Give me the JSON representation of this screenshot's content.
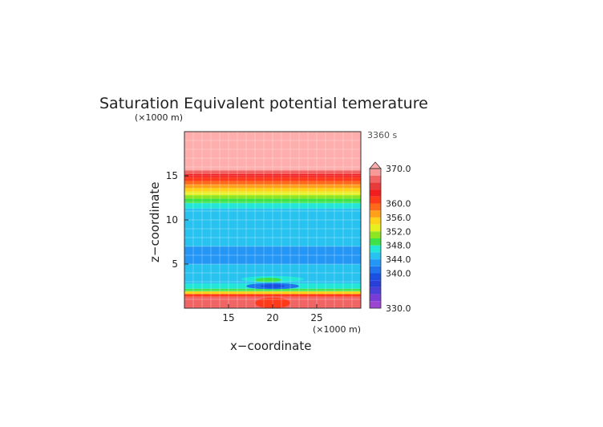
{
  "chart_data": {
    "type": "heatmap",
    "title": "Saturation Equivalent potential temerature",
    "time_label": "3360 s",
    "xlabel": "x−coordinate",
    "ylabel": "z−coordinate",
    "x_unit": "(×1000 m)",
    "z_unit": "(×1000 m)",
    "xlim": [
      10,
      30
    ],
    "ylim": [
      0,
      20
    ],
    "x_ticks": [
      15,
      20,
      25
    ],
    "y_ticks": [
      5,
      10,
      15
    ],
    "grid": true,
    "legend": "right colorbar",
    "colorbar": {
      "min": 330,
      "max": 370,
      "tick_values": [
        370,
        360,
        356,
        352,
        348,
        344,
        340,
        330
      ],
      "tick_labels": [
        "370.0",
        "360.0",
        "356.0",
        "352.0",
        "348.0",
        "344.0",
        "340.0",
        "330.0"
      ],
      "levels": [
        {
          "from": 330,
          "to": 332,
          "color": "#9c45d2"
        },
        {
          "from": 332,
          "to": 334,
          "color": "#7a3cd6"
        },
        {
          "from": 334,
          "to": 336,
          "color": "#4b3fd8"
        },
        {
          "from": 336,
          "to": 338,
          "color": "#2a3fd8"
        },
        {
          "from": 338,
          "to": 340,
          "color": "#1a4fe0"
        },
        {
          "from": 340,
          "to": 342,
          "color": "#1f74ee"
        },
        {
          "from": 342,
          "to": 344,
          "color": "#2496f6"
        },
        {
          "from": 344,
          "to": 346,
          "color": "#27c2f0"
        },
        {
          "from": 346,
          "to": 348,
          "color": "#22e6d6"
        },
        {
          "from": 348,
          "to": 350,
          "color": "#3de24a"
        },
        {
          "from": 350,
          "to": 352,
          "color": "#8ee622"
        },
        {
          "from": 352,
          "to": 354,
          "color": "#e6f020"
        },
        {
          "from": 354,
          "to": 356,
          "color": "#ffd21a"
        },
        {
          "from": 356,
          "to": 358,
          "color": "#ffa01a"
        },
        {
          "from": 358,
          "to": 360,
          "color": "#ff6a1a"
        },
        {
          "from": 360,
          "to": 362,
          "color": "#ff3a1a"
        },
        {
          "from": 362,
          "to": 364,
          "color": "#f21e1e"
        },
        {
          "from": 364,
          "to": 366,
          "color": "#e83a3a"
        },
        {
          "from": 366,
          "to": 368,
          "color": "#f06464"
        },
        {
          "from": 368,
          "to": 370,
          "color": "#f79a9a"
        },
        {
          "from": 370,
          "to": 372,
          "color": "#ffaeae"
        }
      ]
    },
    "layers": [
      {
        "z": [
          15.6,
          20.0
        ],
        "value": 371
      },
      {
        "z": [
          15.2,
          15.6
        ],
        "value": 367
      },
      {
        "z": [
          14.8,
          15.2
        ],
        "value": 363
      },
      {
        "z": [
          14.4,
          14.8
        ],
        "value": 361
      },
      {
        "z": [
          14.0,
          14.4
        ],
        "value": 359
      },
      {
        "z": [
          13.6,
          14.0
        ],
        "value": 357
      },
      {
        "z": [
          13.2,
          13.6
        ],
        "value": 355
      },
      {
        "z": [
          12.8,
          13.2
        ],
        "value": 353
      },
      {
        "z": [
          12.4,
          12.8
        ],
        "value": 351
      },
      {
        "z": [
          11.9,
          12.4
        ],
        "value": 349
      },
      {
        "z": [
          11.3,
          11.9
        ],
        "value": 347
      },
      {
        "z": [
          7.0,
          11.3
        ],
        "value": 345
      },
      {
        "z": [
          5.0,
          7.0
        ],
        "value": 343
      },
      {
        "z": [
          2.8,
          5.0
        ],
        "value": 345
      },
      {
        "z": [
          2.2,
          2.8
        ],
        "value": 347
      },
      {
        "z": [
          1.9,
          2.2
        ],
        "value": 349
      },
      {
        "z": [
          1.6,
          1.9
        ],
        "value": 355
      },
      {
        "z": [
          1.3,
          1.6
        ],
        "value": 361
      },
      {
        "z": [
          0.0,
          1.3
        ],
        "value": 367
      }
    ],
    "features": [
      {
        "type": "dome",
        "x": [
          10,
          30
        ],
        "z_edge": 5.0,
        "z_peak": 4.0,
        "value": 345
      },
      {
        "type": "ellipse",
        "x": 20,
        "z": 3.3,
        "rx": 3.5,
        "rz": 0.35,
        "value": 347
      },
      {
        "type": "ellipse",
        "x": 19.5,
        "z": 3.2,
        "rx": 1.5,
        "rz": 0.25,
        "value": 349
      },
      {
        "type": "ellipse",
        "x": 20,
        "z": 2.5,
        "rx": 3.0,
        "rz": 0.35,
        "value": 341
      },
      {
        "type": "ellipse",
        "x": 20,
        "z": 2.5,
        "rx": 1.4,
        "rz": 0.22,
        "value": 339
      },
      {
        "type": "ellipse",
        "x": 20,
        "z": 0.6,
        "rx": 2.0,
        "rz": 0.6,
        "value": 361
      }
    ]
  }
}
